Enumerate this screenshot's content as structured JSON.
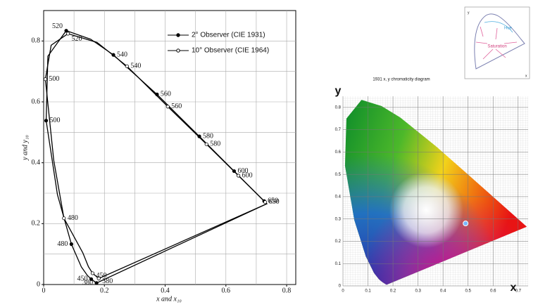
{
  "chart_data": [
    {
      "type": "line",
      "xlabel": "x and x₁₀",
      "ylabel": "y and y₁₀",
      "xlim": [
        0,
        0.83
      ],
      "ylim": [
        0,
        0.9
      ],
      "xticks": [
        0,
        0.2,
        0.4,
        0.6,
        0.8
      ],
      "yticks": [
        0,
        0.2,
        0.4,
        0.6,
        0.8
      ],
      "xgrid": [
        0.1,
        0.2,
        0.3,
        0.4,
        0.5,
        0.6,
        0.7,
        0.8
      ],
      "ygrid": [
        0.1,
        0.2,
        0.3,
        0.4,
        0.5,
        0.6,
        0.7,
        0.8
      ],
      "grid": true,
      "legend": "upper right",
      "series": [
        {
          "name": "2° Observer (CIE 1931)",
          "color": "#000000",
          "marker": "filled",
          "x": [
            0.1741,
            0.1566,
            0.144,
            0.1241,
            0.0913,
            0.0454,
            0.0082,
            0.0139,
            0.0743,
            0.1547,
            0.2296,
            0.3731,
            0.5125,
            0.627,
            0.726,
            0.7347
          ],
          "y": [
            0.005,
            0.0177,
            0.0297,
            0.0578,
            0.1327,
            0.295,
            0.5384,
            0.7502,
            0.8338,
            0.8059,
            0.7543,
            0.6245,
            0.4866,
            0.3725,
            0.274,
            0.2653
          ],
          "point_labels": [
            380,
            450,
            null,
            null,
            480,
            null,
            500,
            null,
            520,
            null,
            540,
            560,
            580,
            600,
            650,
            null
          ]
        },
        {
          "name": "10° Observer (CIE 1964)",
          "color": "#000000",
          "marker": "open",
          "x": [
            0.1813,
            0.1611,
            0.1474,
            0.129,
            0.0668,
            0.0332,
            0.0056,
            0.0247,
            0.08,
            0.176,
            0.2744,
            0.4087,
            0.5361,
            0.6412,
            0.7293,
            0.7347
          ],
          "y": [
            0.0197,
            0.0371,
            0.0585,
            0.104,
            0.2177,
            0.408,
            0.6745,
            0.786,
            0.824,
            0.795,
            0.717,
            0.5844,
            0.4608,
            0.3577,
            0.2707,
            0.2653
          ],
          "point_labels": [
            380,
            450,
            null,
            null,
            480,
            null,
            500,
            null,
            520,
            null,
            540,
            560,
            580,
            600,
            650,
            null
          ]
        }
      ]
    },
    {
      "type": "chromaticity",
      "title": "1931 x, y chromaticity diagram",
      "xlabel": "x",
      "ylabel": "y",
      "xlim": [
        0,
        0.74
      ],
      "ylim": [
        0,
        0.85
      ],
      "xticks": [
        0,
        0.1,
        0.2,
        0.3,
        0.4,
        0.5,
        0.6,
        0.7
      ],
      "yticks": [
        0,
        0.1,
        0.2,
        0.3,
        0.4,
        0.5,
        0.6,
        0.7,
        0.8
      ],
      "grid": true,
      "marker": {
        "x": 0.49,
        "y": 0.28
      },
      "inset": {
        "x_label": "x",
        "y_label": "y",
        "hue_label": "Hue",
        "saturation_label": "Saturation"
      }
    }
  ]
}
